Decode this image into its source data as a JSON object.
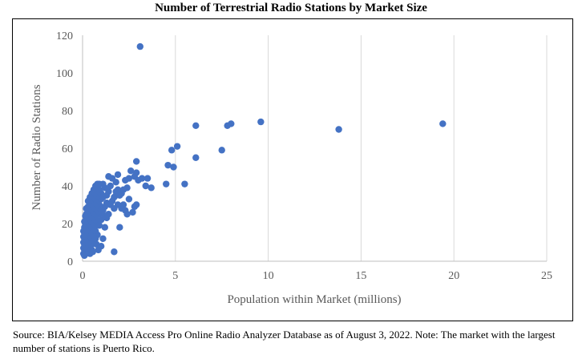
{
  "title": "Number of Terrestrial Radio Stations by Market Size",
  "source_note": "Source: BIA/Kelsey MEDIA Access Pro Online Radio Analyzer Database as of August 3, 2022.  Note: The market with the largest number of stations is Puerto Rico.",
  "colors": {
    "point": "#4472C4",
    "grid": "#D9D9D9",
    "axis": "#BFBFBF",
    "text": "#595959"
  },
  "chart_data": {
    "type": "scatter",
    "xlabel": "Population within Market (millions)",
    "ylabel": "Number of Radio Stations",
    "xlim": [
      0,
      25
    ],
    "ylim": [
      0,
      120
    ],
    "xticks": [
      0,
      5,
      10,
      15,
      20,
      25
    ],
    "yticks": [
      0,
      20,
      40,
      60,
      80,
      100,
      120
    ],
    "grid": "vertical",
    "legend": "none",
    "series": [
      {
        "points": [
          [
            3.1,
            114
          ],
          [
            19.4,
            73
          ],
          [
            13.8,
            70
          ],
          [
            9.6,
            74
          ],
          [
            8.0,
            73
          ],
          [
            7.8,
            72
          ],
          [
            6.1,
            72
          ],
          [
            7.5,
            59
          ],
          [
            6.1,
            55
          ],
          [
            5.1,
            61
          ],
          [
            4.8,
            59
          ],
          [
            4.6,
            51
          ],
          [
            4.9,
            50
          ],
          [
            5.5,
            41
          ],
          [
            4.5,
            41
          ],
          [
            3.7,
            39
          ],
          [
            3.5,
            44
          ],
          [
            3.4,
            40
          ],
          [
            3.2,
            44
          ],
          [
            2.9,
            53
          ],
          [
            2.9,
            47
          ],
          [
            2.8,
            45
          ],
          [
            2.6,
            48
          ],
          [
            2.5,
            44
          ],
          [
            2.4,
            39
          ],
          [
            2.3,
            43
          ],
          [
            2.2,
            38
          ],
          [
            2.1,
            36
          ],
          [
            2.0,
            35
          ],
          [
            1.9,
            46
          ],
          [
            1.9,
            30
          ],
          [
            1.8,
            42
          ],
          [
            1.8,
            37
          ],
          [
            1.7,
            34
          ],
          [
            1.7,
            28
          ],
          [
            1.6,
            44
          ],
          [
            1.5,
            40
          ],
          [
            1.4,
            45
          ],
          [
            1.4,
            37
          ],
          [
            1.3,
            35
          ],
          [
            1.3,
            31
          ],
          [
            1.2,
            29
          ],
          [
            1.2,
            24
          ],
          [
            1.1,
            41
          ],
          [
            1.1,
            27
          ],
          [
            1.0,
            36
          ],
          [
            1.0,
            33
          ],
          [
            1.0,
            22
          ],
          [
            0.9,
            41
          ],
          [
            0.9,
            38
          ],
          [
            0.9,
            30
          ],
          [
            0.9,
            25
          ],
          [
            0.8,
            41
          ],
          [
            0.8,
            35
          ],
          [
            0.8,
            33
          ],
          [
            0.8,
            28
          ],
          [
            0.8,
            26
          ],
          [
            0.8,
            21
          ],
          [
            0.8,
            14
          ],
          [
            0.7,
            40
          ],
          [
            0.7,
            37
          ],
          [
            0.7,
            34
          ],
          [
            0.7,
            31
          ],
          [
            0.7,
            29
          ],
          [
            0.7,
            23
          ],
          [
            0.7,
            19
          ],
          [
            0.7,
            16
          ],
          [
            0.7,
            12
          ],
          [
            0.6,
            38
          ],
          [
            0.6,
            35
          ],
          [
            0.6,
            32
          ],
          [
            0.6,
            27
          ],
          [
            0.6,
            24
          ],
          [
            0.6,
            21
          ],
          [
            0.6,
            18
          ],
          [
            0.6,
            15
          ],
          [
            0.6,
            10
          ],
          [
            0.5,
            36
          ],
          [
            0.5,
            33
          ],
          [
            0.5,
            30
          ],
          [
            0.5,
            28
          ],
          [
            0.5,
            25
          ],
          [
            0.5,
            22
          ],
          [
            0.5,
            19
          ],
          [
            0.5,
            16
          ],
          [
            0.5,
            13
          ],
          [
            0.5,
            9
          ],
          [
            0.5,
            6
          ],
          [
            0.4,
            34
          ],
          [
            0.4,
            31
          ],
          [
            0.4,
            29
          ],
          [
            0.4,
            26
          ],
          [
            0.4,
            23
          ],
          [
            0.4,
            20
          ],
          [
            0.4,
            17
          ],
          [
            0.4,
            14
          ],
          [
            0.4,
            11
          ],
          [
            0.4,
            8
          ],
          [
            0.4,
            4
          ],
          [
            0.3,
            32
          ],
          [
            0.3,
            29
          ],
          [
            0.3,
            27
          ],
          [
            0.3,
            24
          ],
          [
            0.3,
            21
          ],
          [
            0.3,
            18
          ],
          [
            0.3,
            15
          ],
          [
            0.3,
            12
          ],
          [
            0.3,
            9
          ],
          [
            0.3,
            6
          ],
          [
            0.2,
            28
          ],
          [
            0.2,
            25
          ],
          [
            0.2,
            22
          ],
          [
            0.2,
            19
          ],
          [
            0.2,
            16
          ],
          [
            0.2,
            13
          ],
          [
            0.2,
            10
          ],
          [
            0.2,
            7
          ],
          [
            0.15,
            24
          ],
          [
            0.15,
            20
          ],
          [
            0.15,
            17
          ],
          [
            0.15,
            14
          ],
          [
            0.15,
            11
          ],
          [
            0.15,
            8
          ],
          [
            0.1,
            21
          ],
          [
            0.1,
            18
          ],
          [
            0.1,
            15
          ],
          [
            0.1,
            12
          ],
          [
            0.1,
            9
          ],
          [
            0.1,
            6
          ],
          [
            0.1,
            3
          ],
          [
            0.05,
            16
          ],
          [
            0.05,
            13
          ],
          [
            0.05,
            10
          ],
          [
            0.05,
            7
          ],
          [
            0.05,
            4
          ],
          [
            1.0,
            8
          ],
          [
            1.1,
            12
          ],
          [
            1.2,
            18
          ],
          [
            1.3,
            23
          ],
          [
            1.4,
            25
          ],
          [
            1.5,
            30
          ],
          [
            1.6,
            32
          ],
          [
            1.7,
            5
          ],
          [
            2.0,
            18
          ],
          [
            2.1,
            28
          ],
          [
            2.3,
            27
          ],
          [
            2.5,
            33
          ],
          [
            2.7,
            26
          ],
          [
            2.8,
            29
          ],
          [
            2.9,
            30
          ],
          [
            3.0,
            43
          ],
          [
            2.2,
            30
          ],
          [
            2.4,
            25
          ],
          [
            1.8,
            35
          ],
          [
            1.9,
            38
          ],
          [
            0.9,
            19
          ],
          [
            1.0,
            27
          ],
          [
            1.1,
            34
          ],
          [
            1.2,
            39
          ],
          [
            0.85,
            6
          ],
          [
            0.75,
            9
          ],
          [
            0.65,
            13
          ],
          [
            0.55,
            5
          ]
        ]
      }
    ]
  }
}
